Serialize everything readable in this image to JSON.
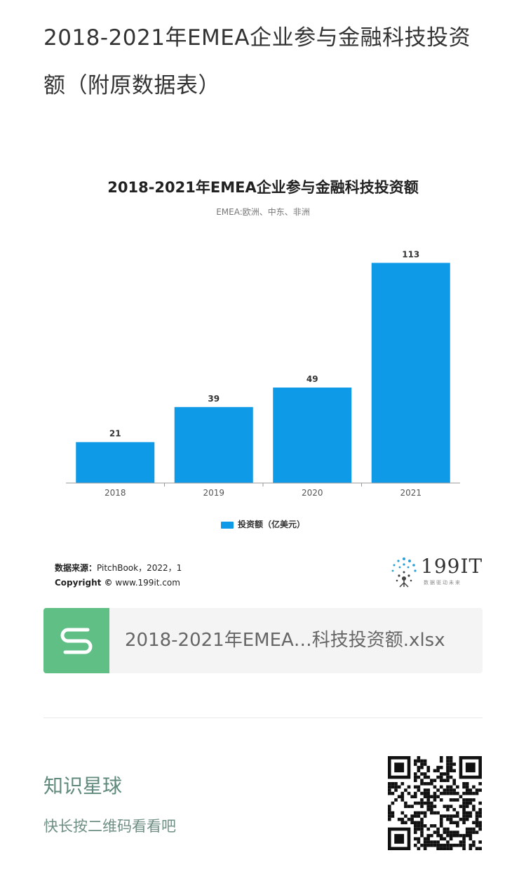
{
  "article": {
    "title": "2018-2021年EMEA企业参与金融科技投资额（附原数据表）"
  },
  "chart_data": {
    "type": "bar",
    "title": "2018-2021年EMEA企业参与金融科技投资额",
    "subtitle": "EMEA:欧洲、中东、非洲",
    "categories": [
      "2018",
      "2019",
      "2020",
      "2021"
    ],
    "series": [
      {
        "name": "投资额（亿美元）",
        "values": [
          21,
          39,
          49,
          113
        ],
        "color": "#0e9ae6"
      }
    ],
    "data_labels": [
      "21",
      "39",
      "49",
      "113"
    ],
    "ylim": [
      0,
      120
    ],
    "grid": false,
    "legend_position": "bottom"
  },
  "source": {
    "label": "数据来源：",
    "text": "PitchBook，2022，1",
    "copyright_label": "Copyright ©",
    "copyright_site": "www.199it.com"
  },
  "logo": {
    "name": "199IT",
    "slogan": "数据驱动未来"
  },
  "attachment": {
    "icon": "spreadsheet-icon",
    "filename": "2018-2021年EMEA…科技投资额.xlsx"
  },
  "planet": {
    "title": "知识星球",
    "hint": "快长按二维码看看吧"
  }
}
